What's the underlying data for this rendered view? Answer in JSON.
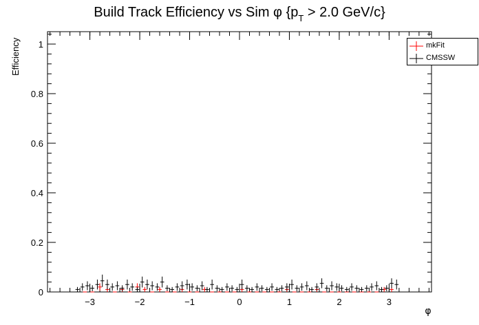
{
  "chart_data": {
    "type": "scatter",
    "title_main": "Build Track Efficiency vs Sim φ {p",
    "title_sub": "T",
    "title_tail": " > 2.0 GeV/c}",
    "xlabel": "φ",
    "ylabel": "Efficiency",
    "xlim": [
      -3.85,
      3.85
    ],
    "ylim": [
      0,
      1.05
    ],
    "x_ticks": [
      -3,
      -2,
      -1,
      0,
      1,
      2,
      3
    ],
    "x_tick_labels": [
      "−3",
      "−2",
      "−1",
      "0",
      "1",
      "2",
      "3"
    ],
    "y_ticks": [
      0,
      0.2,
      0.4,
      0.6,
      0.8,
      1
    ],
    "y_tick_labels": [
      "0",
      "0.2",
      "0.4",
      "0.6",
      "0.8",
      "1"
    ],
    "bin_width": 0.0785,
    "legend_position": "top-right",
    "series": [
      {
        "name": "mkFit",
        "color": "#ff0000",
        "x": [
          -3.1,
          -2.95,
          -2.8,
          -2.65,
          -2.5,
          -2.35,
          -2.2,
          -2.05,
          -1.9,
          -1.75,
          -1.6,
          -1.45,
          -1.3,
          -1.15,
          -1.0,
          -0.85,
          -0.7,
          -0.55,
          -0.4,
          -0.25,
          -0.1,
          0.05,
          0.2,
          0.35,
          0.5,
          0.65,
          0.8,
          0.95,
          1.1,
          1.25,
          1.4,
          1.55,
          1.7,
          1.85,
          2.0,
          2.15,
          2.3,
          2.45,
          2.6,
          2.75,
          2.9,
          3.05
        ],
        "values": [
          0.0,
          0.0,
          0.02,
          0.01,
          0.0,
          0.01,
          0.0,
          0.02,
          0.01,
          0.0,
          0.01,
          0.0,
          0.0,
          0.01,
          0.0,
          0.0,
          0.01,
          0.0,
          0.0,
          0.0,
          0.0,
          0.01,
          0.0,
          0.0,
          0.0,
          0.0,
          0.0,
          0.01,
          0.0,
          0.0,
          0.0,
          0.01,
          0.0,
          0.0,
          0.0,
          0.0,
          0.0,
          0.0,
          0.0,
          0.0,
          0.01,
          0.01
        ],
        "errors": [
          0.0,
          0.0,
          0.015,
          0.01,
          0.0,
          0.01,
          0.0,
          0.015,
          0.01,
          0.0,
          0.01,
          0.0,
          0.0,
          0.01,
          0.0,
          0.0,
          0.01,
          0.0,
          0.0,
          0.0,
          0.0,
          0.01,
          0.0,
          0.0,
          0.0,
          0.0,
          0.0,
          0.01,
          0.0,
          0.0,
          0.0,
          0.01,
          0.0,
          0.0,
          0.0,
          0.0,
          0.0,
          0.0,
          0.0,
          0.0,
          0.01,
          0.01
        ]
      },
      {
        "name": "CMSSW",
        "color": "#000000",
        "x": [
          -3.25,
          -3.15,
          -3.05,
          -2.95,
          -2.85,
          -2.75,
          -2.65,
          -2.55,
          -2.45,
          -2.35,
          -2.25,
          -2.15,
          -2.05,
          -1.95,
          -1.85,
          -1.75,
          -1.65,
          -1.55,
          -1.45,
          -1.35,
          -1.25,
          -1.15,
          -1.05,
          -0.95,
          -0.85,
          -0.75,
          -0.65,
          -0.55,
          -0.45,
          -0.35,
          -0.25,
          -0.15,
          -0.05,
          0.05,
          0.15,
          0.25,
          0.35,
          0.45,
          0.55,
          0.65,
          0.75,
          0.85,
          0.95,
          1.05,
          1.15,
          1.25,
          1.35,
          1.45,
          1.55,
          1.65,
          1.75,
          1.85,
          1.95,
          2.05,
          2.15,
          2.25,
          2.35,
          2.45,
          2.55,
          2.65,
          2.75,
          2.85,
          2.95,
          3.05,
          3.15
        ],
        "values": [
          0.01,
          0.02,
          0.025,
          0.015,
          0.03,
          0.045,
          0.03,
          0.02,
          0.025,
          0.015,
          0.03,
          0.02,
          0.01,
          0.04,
          0.03,
          0.025,
          0.02,
          0.04,
          0.015,
          0.01,
          0.02,
          0.025,
          0.03,
          0.02,
          0.015,
          0.025,
          0.01,
          0.03,
          0.015,
          0.01,
          0.02,
          0.015,
          0.01,
          0.03,
          0.015,
          0.01,
          0.02,
          0.015,
          0.01,
          0.02,
          0.01,
          0.015,
          0.02,
          0.03,
          0.015,
          0.02,
          0.025,
          0.01,
          0.02,
          0.035,
          0.015,
          0.025,
          0.02,
          0.015,
          0.01,
          0.02,
          0.015,
          0.01,
          0.015,
          0.02,
          0.025,
          0.01,
          0.015,
          0.035,
          0.03
        ],
        "errors": [
          0.01,
          0.015,
          0.018,
          0.012,
          0.02,
          0.025,
          0.02,
          0.015,
          0.018,
          0.012,
          0.02,
          0.015,
          0.01,
          0.022,
          0.02,
          0.018,
          0.015,
          0.022,
          0.012,
          0.01,
          0.015,
          0.018,
          0.02,
          0.015,
          0.012,
          0.018,
          0.01,
          0.02,
          0.012,
          0.01,
          0.015,
          0.012,
          0.01,
          0.02,
          0.012,
          0.01,
          0.015,
          0.012,
          0.01,
          0.015,
          0.01,
          0.012,
          0.015,
          0.02,
          0.012,
          0.015,
          0.018,
          0.01,
          0.015,
          0.02,
          0.012,
          0.018,
          0.015,
          0.012,
          0.01,
          0.015,
          0.012,
          0.01,
          0.012,
          0.015,
          0.018,
          0.01,
          0.012,
          0.02,
          0.02
        ]
      }
    ]
  }
}
